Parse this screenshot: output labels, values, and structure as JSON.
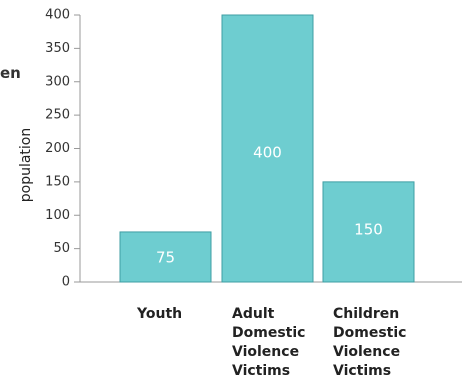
{
  "fragment": {
    "text": "en"
  },
  "chart_data": {
    "type": "bar",
    "title": "",
    "xlabel": "",
    "ylabel": "population",
    "ylim": [
      0,
      400
    ],
    "yticks": [
      0,
      50,
      100,
      150,
      200,
      250,
      300,
      350,
      400
    ],
    "categories": [
      [
        "Youth"
      ],
      [
        "Adult",
        "Domestic",
        "Violence",
        "Victims"
      ],
      [
        "Children",
        "Domestic",
        "Violence",
        "Victims"
      ]
    ],
    "values": [
      75,
      400,
      150
    ],
    "data_labels": [
      "75",
      "400",
      "150"
    ],
    "grid": false,
    "legend": "none",
    "colors": {
      "bar_fill": "#6ecdd0",
      "bar_stroke": "#3f9ea3",
      "bar_label": "#ffffff",
      "axis": "#999999",
      "tick_text": "#333333",
      "category_text": "#222222"
    }
  }
}
